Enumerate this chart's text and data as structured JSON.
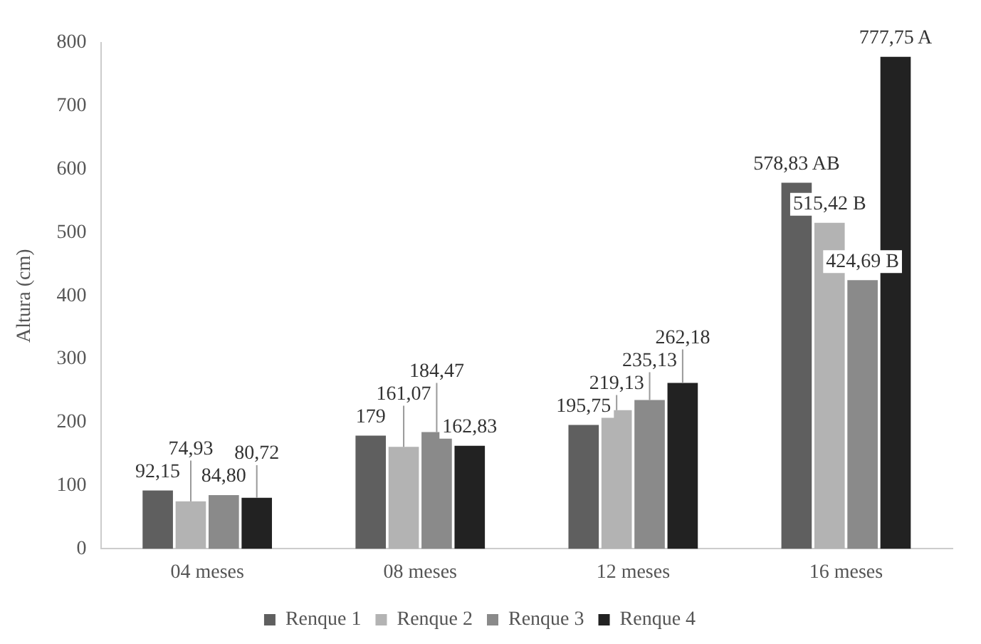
{
  "chart_data": {
    "type": "bar",
    "ylabel": "Altura (cm)",
    "categories": [
      "04 meses",
      "08 meses",
      "12 meses",
      "16 meses"
    ],
    "series": [
      {
        "name": "Renque 1",
        "color": "#5f5f5f",
        "values": [
          92.15,
          179,
          195.75,
          578.83
        ],
        "value_labels": [
          "92,15",
          "179",
          "195,75",
          "578,83 AB"
        ]
      },
      {
        "name": "Renque 2",
        "color": "#b3b3b3",
        "values": [
          74.93,
          161.07,
          219.13,
          515.42
        ],
        "value_labels": [
          "74,93",
          "161,07",
          "219,13",
          "515,42 B"
        ]
      },
      {
        "name": "Renque 3",
        "color": "#8a8a8a",
        "values": [
          84.8,
          184.47,
          235.13,
          424.69
        ],
        "value_labels": [
          "84,80",
          "184,47",
          "235,13",
          "424,69 B"
        ]
      },
      {
        "name": "Renque 4",
        "color": "#222222",
        "values": [
          80.72,
          162.83,
          262.18,
          777.75
        ],
        "value_labels": [
          "80,72",
          "162,83",
          "262,18",
          "777,75 A"
        ]
      }
    ],
    "ylim": [
      0,
      800
    ],
    "yticks": [
      0,
      100,
      200,
      300,
      400,
      500,
      600,
      700,
      800
    ],
    "grid": false,
    "legend": "bottom"
  }
}
